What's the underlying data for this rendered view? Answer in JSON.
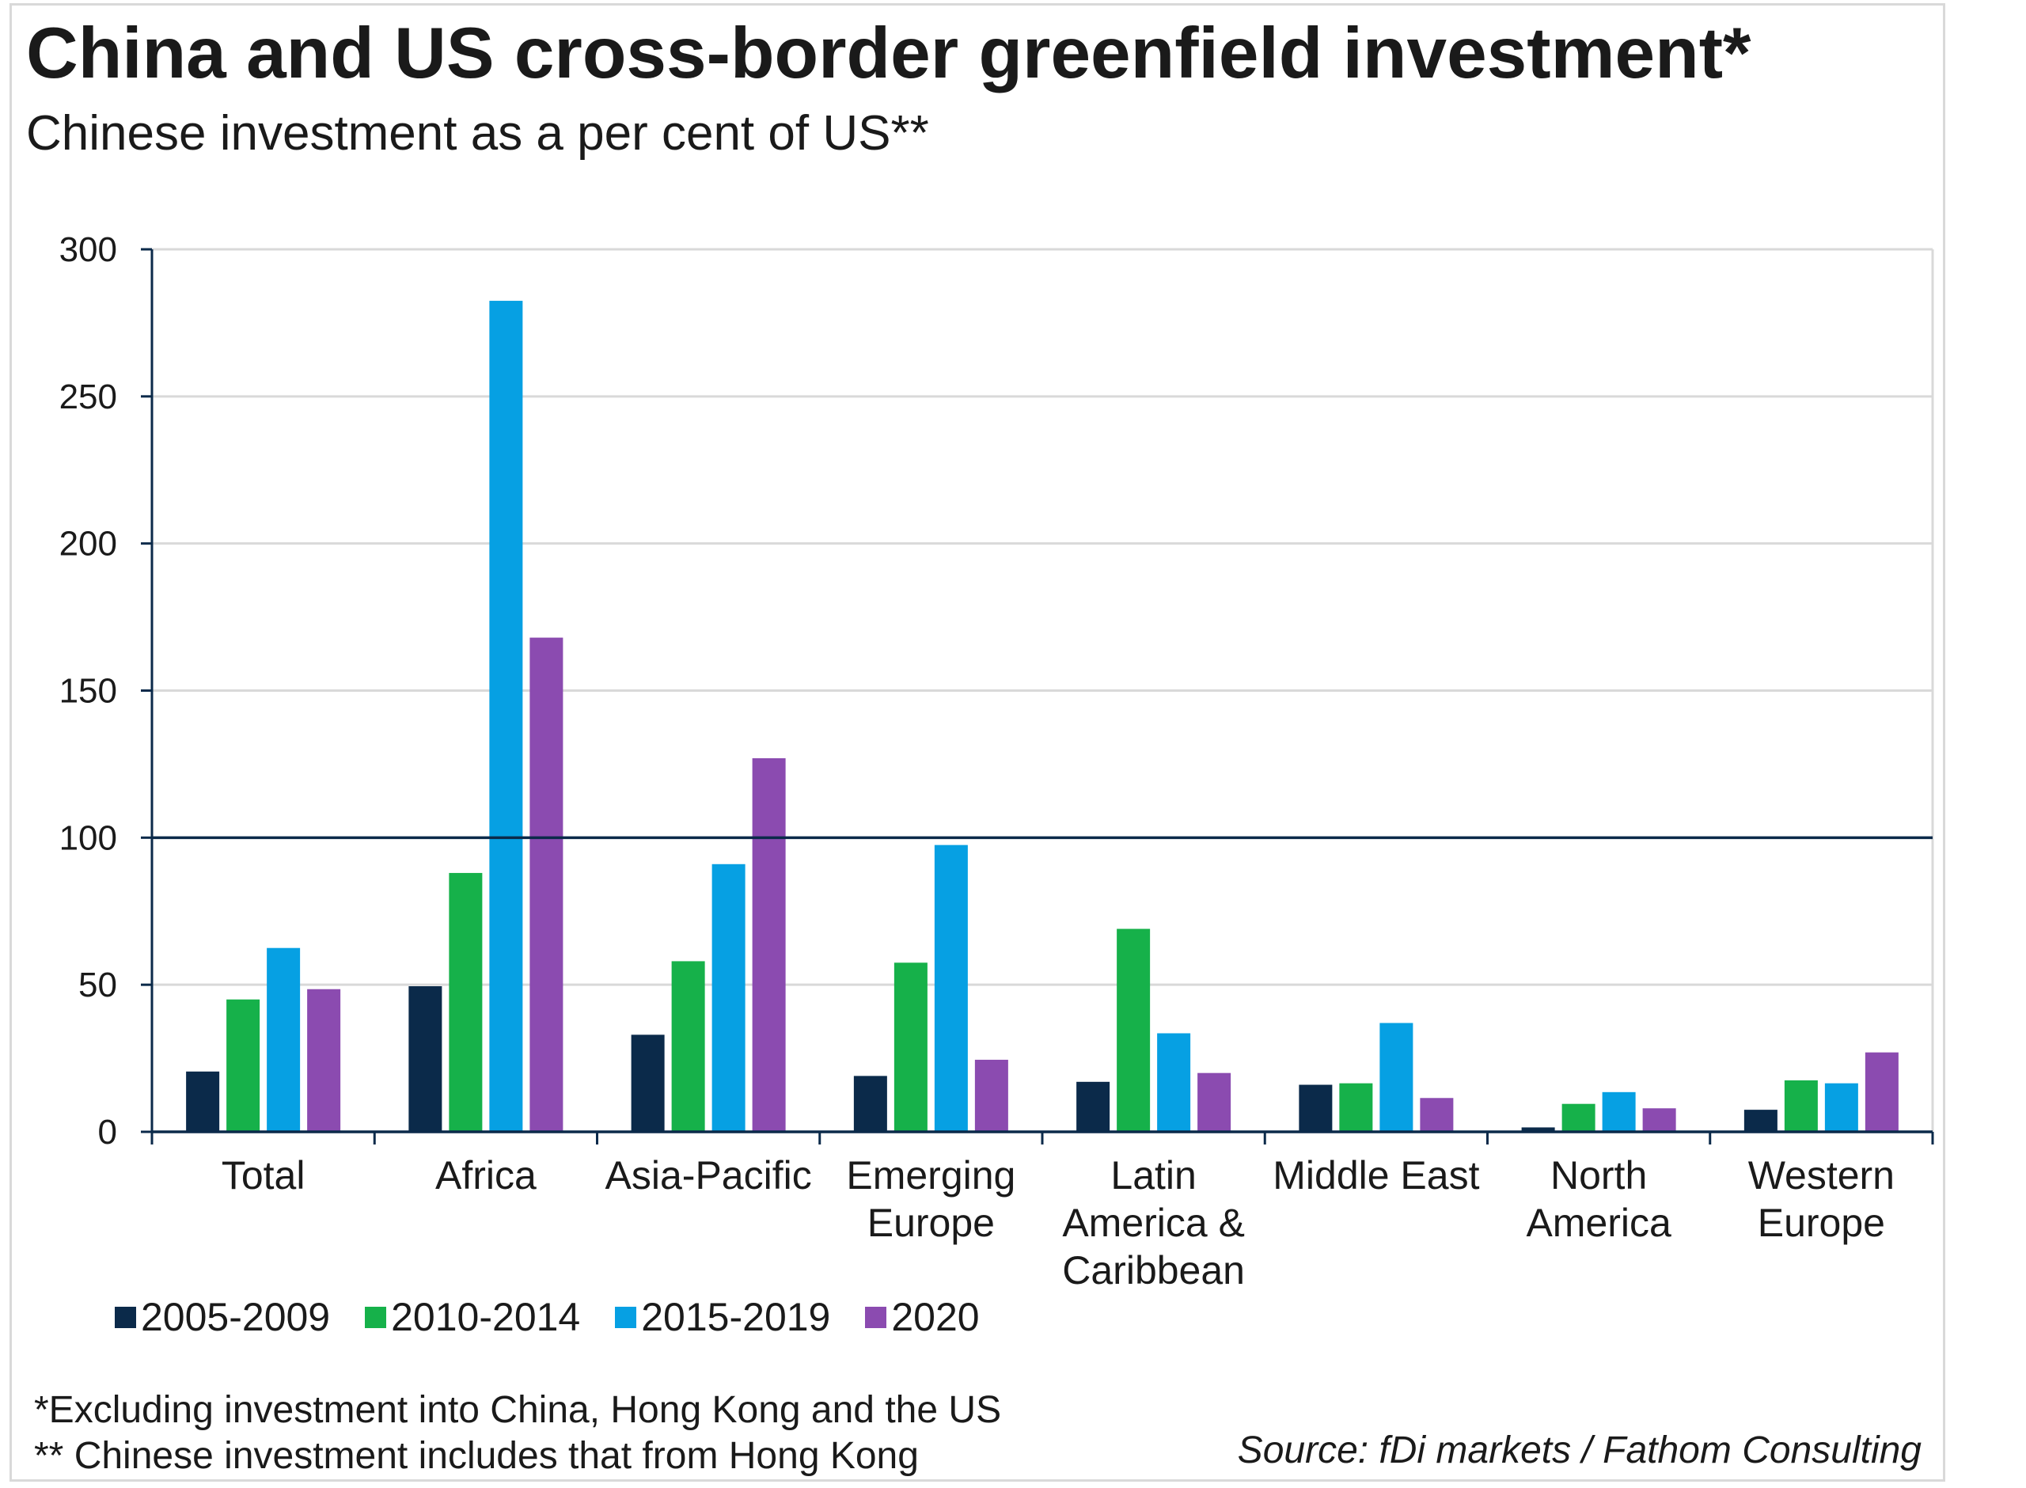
{
  "header": {
    "title": "China and US cross-border greenfield investment*",
    "subtitle": "Chinese investment as a per cent of US**"
  },
  "footer": {
    "note1": "*Excluding investment into China, Hong Kong and the US",
    "note2": "** Chinese investment includes that from Hong Kong",
    "source": "Source: fDi markets / Fathom Consulting"
  },
  "chart_data": {
    "type": "bar",
    "title": "China and US cross-border greenfield investment*",
    "subtitle": "Chinese investment as a per cent of US**",
    "xlabel": "",
    "ylabel": "",
    "ylim": [
      0,
      300
    ],
    "yticks": [
      0,
      50,
      100,
      150,
      200,
      250,
      300
    ],
    "reference_line": 100,
    "grid": true,
    "legend_position": "bottom-left",
    "categories": [
      [
        "Total"
      ],
      [
        "Africa"
      ],
      [
        "Asia-Pacific"
      ],
      [
        "Emerging",
        "Europe"
      ],
      [
        "Latin",
        "America &",
        "Caribbean"
      ],
      [
        "Middle East"
      ],
      [
        "North",
        "America"
      ],
      [
        "Western",
        "Europe"
      ]
    ],
    "series": [
      {
        "name": "2005-2009",
        "color": "#0b2a4a",
        "values": [
          20.5,
          49.5,
          33,
          19,
          17,
          16,
          1.5,
          7.5
        ]
      },
      {
        "name": "2010-2014",
        "color": "#16b14a",
        "values": [
          45,
          88,
          58,
          57.5,
          69,
          16.5,
          9.5,
          17.5
        ]
      },
      {
        "name": "2015-2019",
        "color": "#06a0e3",
        "values": [
          62.5,
          282.5,
          91,
          97.5,
          33.5,
          37,
          13.5,
          16.5
        ]
      },
      {
        "name": "2020",
        "color": "#8b4bb0",
        "values": [
          48.5,
          168,
          127,
          24.5,
          20,
          11.5,
          8,
          27
        ]
      }
    ]
  }
}
